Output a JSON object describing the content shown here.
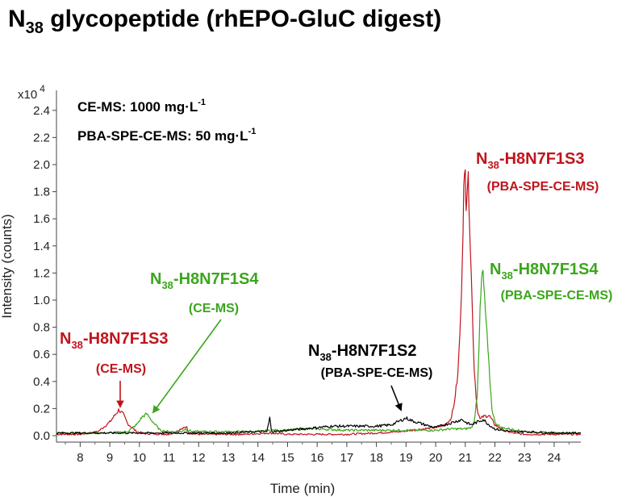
{
  "title": {
    "lead": "N",
    "sub": "38",
    "rest": " glycopeptide (rhEPO-GluC digest)"
  },
  "conditions": {
    "line1": {
      "text": "CE-MS: 1000 mg·L",
      "sup": "-1"
    },
    "line2": {
      "text": "PBA-SPE-CE-MS: 50 mg·L",
      "sup": "-1"
    }
  },
  "axes": {
    "scale_prefix": "x10",
    "scale_exp": "4",
    "ylabel": "Intensity (counts)",
    "xlabel": "Time (min)"
  },
  "annotations": [
    {
      "id": "s3-ce",
      "color": "#c0141c",
      "lead": "N",
      "sub": "38",
      "rest": "-H8N7F1S3",
      "method": "(CE-MS)"
    },
    {
      "id": "s4-ce",
      "color": "#3aa61c",
      "lead": "N",
      "sub": "38",
      "rest": "-H8N7F1S4",
      "method": "(CE-MS)"
    },
    {
      "id": "s2-pba",
      "color": "#000000",
      "lead": "N",
      "sub": "38",
      "rest": "-H8N7F1S2",
      "method": "(PBA-SPE-CE-MS)"
    },
    {
      "id": "s3-pba",
      "color": "#c0141c",
      "lead": "N",
      "sub": "38",
      "rest": "-H8N7F1S3",
      "method": "(PBA-SPE-CE-MS)"
    },
    {
      "id": "s4-pba",
      "color": "#3aa61c",
      "lead": "N",
      "sub": "38",
      "rest": "-H8N7F1S4",
      "method": "(PBA-SPE-CE-MS)"
    }
  ],
  "chart_data": {
    "type": "line",
    "xlabel": "Time (min)",
    "ylabel": "Intensity (counts)",
    "y_scale_note": "x10^4",
    "xlim": [
      7.2,
      24.9
    ],
    "ylim": [
      0,
      2.5
    ],
    "xticks": [
      "8",
      "9",
      "10",
      "11",
      "12",
      "13",
      "14",
      "15",
      "16",
      "17",
      "18",
      "19",
      "20",
      "21",
      "22",
      "23",
      "24"
    ],
    "yticks": [
      "0.0",
      "0.2",
      "0.4",
      "0.6",
      "0.8",
      "1.0",
      "1.2",
      "1.4",
      "1.6",
      "1.8",
      "2.0",
      "2.2",
      "2.4"
    ],
    "series": [
      {
        "color": "#c0141c",
        "x": [
          7.2,
          8.0,
          8.6,
          9.0,
          9.2,
          9.3,
          9.45,
          9.6,
          9.9,
          10.2,
          11.0,
          11.55,
          11.6,
          11.65,
          12.0,
          13.5,
          14.4,
          15.0,
          16.0,
          17.0,
          18.0,
          18.8,
          19.2,
          19.6,
          20.0,
          20.3,
          20.5,
          20.6,
          20.75,
          20.85,
          20.9,
          20.95,
          21.0,
          21.03,
          21.08,
          21.12,
          21.2,
          21.3,
          21.4,
          21.5,
          21.6,
          21.8,
          22.0,
          22.3,
          22.6,
          23.0,
          24.0,
          24.9
        ],
        "y": [
          0.01,
          0.01,
          0.03,
          0.1,
          0.16,
          0.19,
          0.16,
          0.09,
          0.03,
          0.015,
          0.01,
          0.06,
          0.07,
          0.02,
          0.01,
          0.01,
          0.02,
          0.01,
          0.01,
          0.01,
          0.02,
          0.03,
          0.04,
          0.05,
          0.06,
          0.08,
          0.12,
          0.2,
          0.45,
          0.9,
          1.35,
          1.8,
          1.93,
          1.75,
          1.9,
          1.8,
          1.2,
          0.5,
          0.2,
          0.12,
          0.14,
          0.15,
          0.08,
          0.04,
          0.02,
          0.01,
          0.01,
          0.01
        ]
      },
      {
        "color": "#3aa61c",
        "x": [
          7.2,
          8.0,
          9.0,
          9.6,
          9.9,
          10.1,
          10.25,
          10.35,
          10.5,
          10.7,
          11.0,
          11.4,
          11.55,
          11.65,
          11.8,
          12.5,
          13.5,
          14.0,
          14.5,
          15.0,
          15.5,
          16.0,
          17.0,
          18.0,
          19.0,
          20.0,
          20.5,
          21.0,
          21.2,
          21.3,
          21.4,
          21.45,
          21.5,
          21.55,
          21.6,
          21.65,
          21.7,
          21.8,
          21.9,
          22.0,
          22.2,
          22.5,
          23.0,
          24.0,
          24.9
        ],
        "y": [
          0.02,
          0.02,
          0.02,
          0.03,
          0.08,
          0.14,
          0.16,
          0.13,
          0.09,
          0.04,
          0.03,
          0.03,
          0.05,
          0.04,
          0.03,
          0.03,
          0.03,
          0.03,
          0.04,
          0.04,
          0.05,
          0.05,
          0.04,
          0.04,
          0.04,
          0.04,
          0.05,
          0.05,
          0.06,
          0.1,
          0.3,
          0.6,
          0.9,
          1.15,
          1.2,
          1.0,
          0.85,
          0.5,
          0.2,
          0.1,
          0.06,
          0.05,
          0.03,
          0.02,
          0.02
        ]
      },
      {
        "color": "#000000",
        "x": [
          7.2,
          8.0,
          9.0,
          10.0,
          11.0,
          12.0,
          13.0,
          14.0,
          14.3,
          14.4,
          14.45,
          14.5,
          14.6,
          15.0,
          15.5,
          16.0,
          16.5,
          17.0,
          17.5,
          18.0,
          18.5,
          18.8,
          19.0,
          19.2,
          19.5,
          19.8,
          20.0,
          20.3,
          20.6,
          20.9,
          21.0,
          21.2,
          21.4,
          21.6,
          21.8,
          22.0,
          22.5,
          23.0,
          24.0,
          24.9
        ],
        "y": [
          0.02,
          0.02,
          0.02,
          0.02,
          0.02,
          0.02,
          0.02,
          0.03,
          0.03,
          0.13,
          0.05,
          0.03,
          0.03,
          0.04,
          0.05,
          0.06,
          0.07,
          0.07,
          0.07,
          0.07,
          0.08,
          0.11,
          0.13,
          0.11,
          0.09,
          0.07,
          0.06,
          0.08,
          0.1,
          0.12,
          0.1,
          0.08,
          0.1,
          0.12,
          0.08,
          0.05,
          0.03,
          0.03,
          0.02,
          0.02
        ]
      }
    ]
  }
}
